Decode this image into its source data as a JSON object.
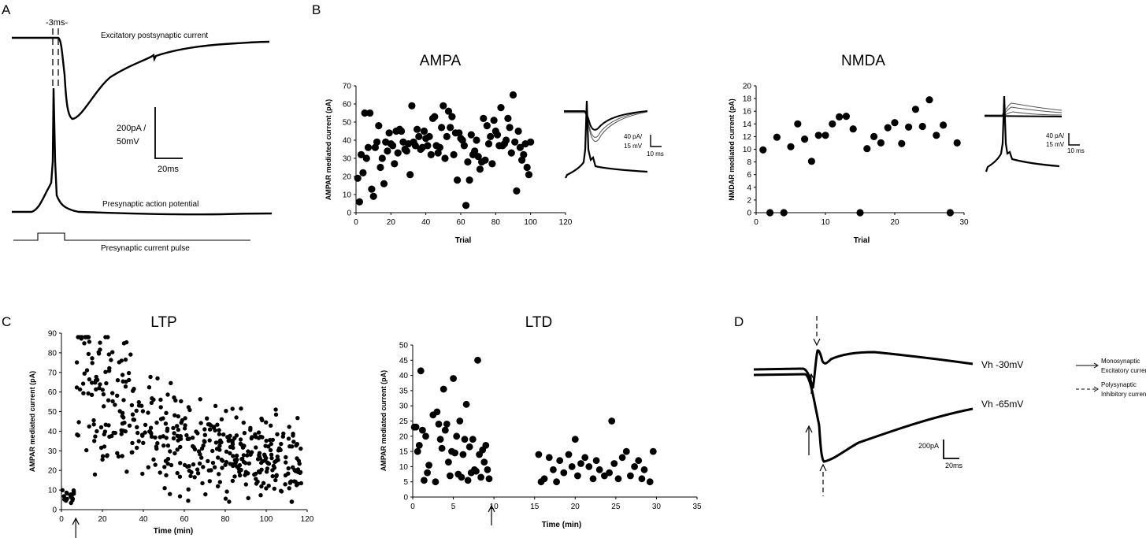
{
  "panels": {
    "A": {
      "letter": "A",
      "timing_label": "-3ms-",
      "epsc_label": "Excitatory postsynaptic current",
      "scale_label_line1": "200pA /",
      "scale_label_line2": "50mV",
      "scale_time_label": "20ms",
      "ap_label": "Presynaptic action potential",
      "pulse_label": "Presynaptic current pulse"
    },
    "B": {
      "letter": "B",
      "inset_ampa": {
        "scale_line1": "40 pA/",
        "scale_line2": "15 mV",
        "scale_time": "10 ms"
      },
      "inset_nmda": {
        "scale_line1": "40 pA/",
        "scale_line2": "15 mV",
        "scale_time": "10 ms"
      }
    },
    "C": {
      "letter": "C"
    },
    "D": {
      "letter": "D",
      "trace_top_label": "Vh -30mV",
      "trace_bottom_label": "Vh -65mV",
      "scale_label": "200pA",
      "scale_time_label": "20ms",
      "legend": {
        "solid_line1": "Monosynaptic",
        "solid_line2": "Excitatory current",
        "dashed_line1": "Polysynaptic",
        "dashed_line2": "Inhibitory current"
      }
    }
  },
  "chart_data": [
    {
      "id": "ampa",
      "type": "scatter",
      "title": "AMPA",
      "xlabel": "Trial",
      "ylabel": "AMPAR mediated current (pA)",
      "xlim": [
        0,
        120
      ],
      "ylim": [
        0,
        70
      ],
      "xticks": [
        0,
        20,
        40,
        60,
        80,
        100,
        120
      ],
      "yticks": [
        0,
        10,
        20,
        30,
        40,
        50,
        60,
        70
      ],
      "grid": false,
      "x": [
        1,
        2,
        3,
        4,
        5,
        6,
        7,
        8,
        9,
        10,
        11,
        12,
        13,
        14,
        15,
        16,
        17,
        18,
        19,
        20,
        21,
        22,
        23,
        24,
        25,
        26,
        27,
        28,
        29,
        30,
        31,
        32,
        33,
        34,
        35,
        36,
        37,
        38,
        39,
        40,
        41,
        42,
        43,
        44,
        45,
        46,
        47,
        48,
        49,
        50,
        51,
        52,
        53,
        54,
        55,
        56,
        57,
        58,
        59,
        60,
        61,
        62,
        63,
        64,
        65,
        66,
        67,
        68,
        69,
        70,
        71,
        72,
        73,
        74,
        75,
        76,
        77,
        78,
        79,
        80,
        81,
        82,
        83,
        84,
        85,
        86,
        87,
        88,
        89,
        90,
        91,
        92,
        93,
        94,
        95,
        96,
        97,
        98,
        99,
        100
      ],
      "y": [
        19,
        6,
        32,
        22,
        55,
        30,
        36,
        55,
        13,
        9,
        36,
        39,
        48,
        25,
        30,
        16,
        39,
        34,
        44,
        38,
        37,
        27,
        45,
        33,
        46,
        45,
        39,
        35,
        34,
        38,
        21,
        59,
        39,
        37,
        46,
        42,
        35,
        36,
        45,
        41,
        37,
        42,
        32,
        52,
        53,
        37,
        33,
        36,
        47,
        59,
        30,
        42,
        56,
        47,
        53,
        32,
        44,
        18,
        44,
        41,
        40,
        37,
        4,
        28,
        18,
        43,
        32,
        34,
        40,
        31,
        24,
        28,
        52,
        29,
        48,
        38,
        42,
        27,
        51,
        45,
        43,
        37,
        58,
        37,
        38,
        40,
        52,
        47,
        33,
        65,
        39,
        12,
        45,
        36,
        29,
        32,
        38,
        25,
        21,
        39
      ]
    },
    {
      "id": "nmda",
      "type": "scatter",
      "title": "NMDA",
      "xlabel": "Trial",
      "ylabel": "NMDAR mediated current (pA)",
      "xlim": [
        0,
        30
      ],
      "ylim": [
        0,
        20
      ],
      "xticks": [
        0,
        10,
        20,
        30
      ],
      "yticks": [
        0,
        2,
        4,
        6,
        8,
        10,
        12,
        14,
        16,
        18,
        20
      ],
      "grid": false,
      "x": [
        1,
        2,
        3,
        4,
        5,
        6,
        7,
        8,
        9,
        10,
        11,
        12,
        13,
        14,
        15,
        16,
        17,
        18,
        19,
        20,
        21,
        22,
        23,
        24,
        25,
        26,
        27,
        28,
        29
      ],
      "y": [
        9.9,
        0,
        11.9,
        0,
        10.4,
        14,
        11.6,
        8.1,
        12.2,
        12.2,
        14,
        15.1,
        15.2,
        13.2,
        0,
        10.1,
        12,
        11,
        13.4,
        14.2,
        10.9,
        13.5,
        16.3,
        13.6,
        17.8,
        12.2,
        13.8,
        0,
        11
      ]
    },
    {
      "id": "ltp",
      "type": "scatter",
      "title": "LTP",
      "xlabel": "Time (min)",
      "ylabel": "AMPAR mediated current (pA)",
      "xlim": [
        0,
        120
      ],
      "ylim": [
        0,
        90
      ],
      "xticks": [
        0,
        20,
        40,
        60,
        80,
        100,
        120
      ],
      "yticks": [
        0,
        10,
        20,
        30,
        40,
        50,
        60,
        70,
        80,
        90
      ],
      "grid": false,
      "arrow_at_x": 7
    },
    {
      "id": "ltd",
      "type": "scatter",
      "title": "LTD",
      "xlabel": "Time (min)",
      "ylabel": "AMPAR mediated current (pA)",
      "xlim": [
        0,
        35
      ],
      "ylim": [
        0,
        50
      ],
      "xticks": [
        0,
        5,
        10,
        15,
        20,
        25,
        30,
        35
      ],
      "yticks": [
        0,
        5,
        10,
        15,
        20,
        25,
        30,
        35,
        40,
        45,
        50
      ],
      "grid": false,
      "arrow_at_x": 9.7,
      "x": [
        0.2,
        0.4,
        0.6,
        0.8,
        1.0,
        1.2,
        1.4,
        1.6,
        1.8,
        2.0,
        2.5,
        2.8,
        3.0,
        3.2,
        3.4,
        3.6,
        3.8,
        4.0,
        4.2,
        4.4,
        4.6,
        4.8,
        5.0,
        5.2,
        5.4,
        5.6,
        5.8,
        6.0,
        6.2,
        6.4,
        6.6,
        6.8,
        7.0,
        7.2,
        7.4,
        7.6,
        7.8,
        8.0,
        8.2,
        8.4,
        8.6,
        8.8,
        9.0,
        9.2,
        9.4,
        15.5,
        15.8,
        16.2,
        16.8,
        17.3,
        17.7,
        18.1,
        18.6,
        19.2,
        19.6,
        20.0,
        20.3,
        20.7,
        21.2,
        21.7,
        22.2,
        22.6,
        23.0,
        23.6,
        24.2,
        24.5,
        24.8,
        25.3,
        25.8,
        26.3,
        26.8,
        27.3,
        27.8,
        28.2,
        28.5,
        29.2,
        29.6
      ],
      "y": [
        23,
        23,
        15,
        17,
        41.5,
        22,
        5.5,
        20,
        8,
        10.5,
        27,
        5,
        28,
        24,
        19,
        16,
        35.5,
        22,
        24,
        11.5,
        7,
        15,
        39,
        14.5,
        20,
        7.5,
        25,
        6.5,
        14,
        19,
        30.5,
        5.5,
        16.5,
        8,
        19,
        9,
        8.5,
        45,
        14,
        6.5,
        15.5,
        11.5,
        17,
        9,
        6,
        14,
        5,
        6,
        13,
        9,
        5,
        12,
        8,
        14,
        10,
        19,
        7,
        11,
        13,
        10,
        6,
        12,
        9,
        7,
        8,
        25,
        11,
        6,
        13,
        15,
        7,
        10,
        12,
        6,
        9,
        5,
        15
      ]
    }
  ]
}
